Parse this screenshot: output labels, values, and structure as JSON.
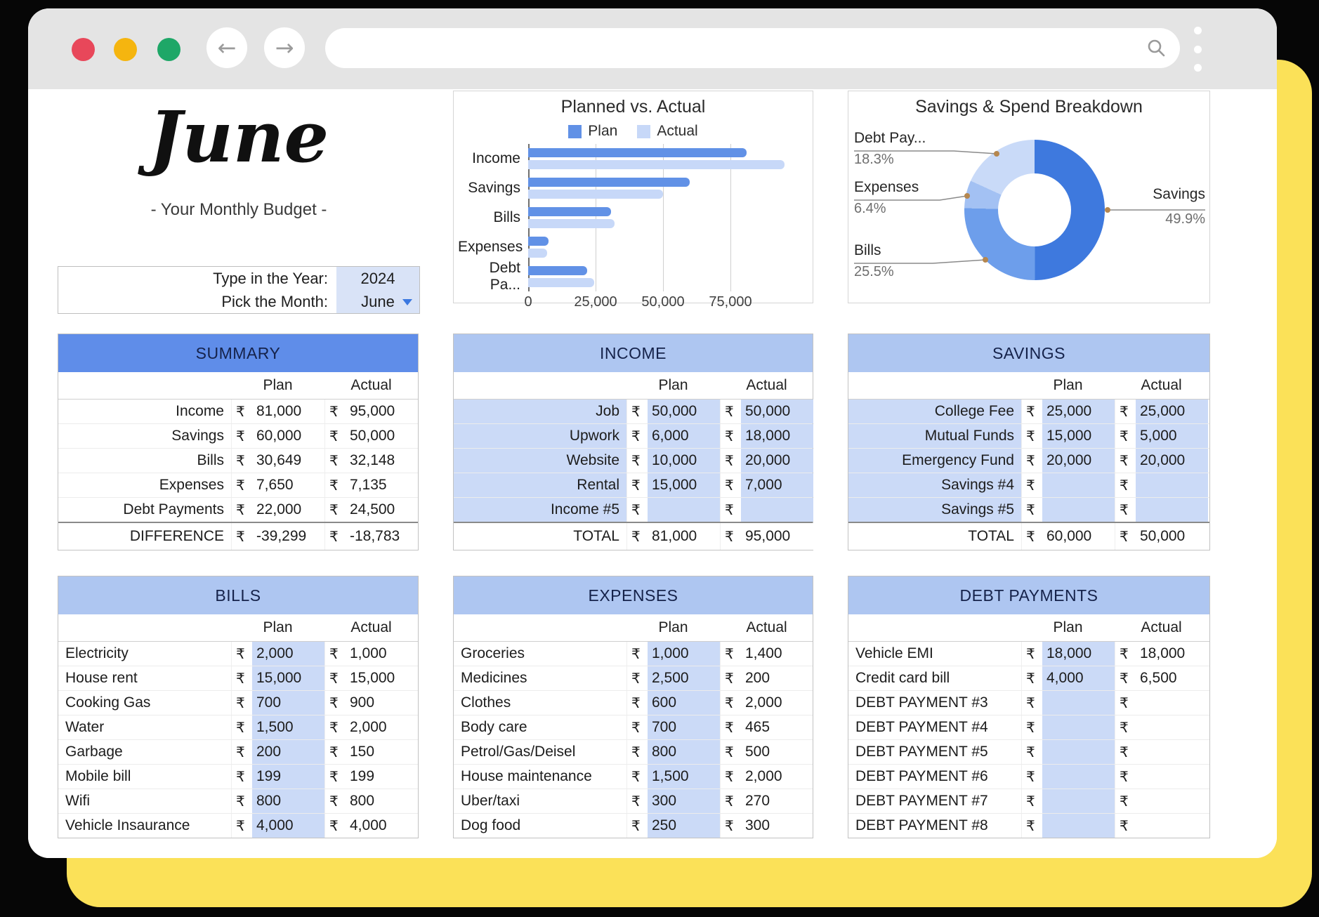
{
  "browser": {
    "back_glyph": "←",
    "forward_glyph": "→",
    "url_value": ""
  },
  "header": {
    "month_title": "June",
    "subtitle": "- Your Monthly Budget -"
  },
  "picker": {
    "year_label": "Type in the Year:",
    "year_value": "2024",
    "month_label": "Pick the Month:",
    "month_value": "June"
  },
  "currency": "₹",
  "colors": {
    "accent_dark_header": "#5f8de9",
    "accent_light_header": "#aec6f1",
    "cell_fill": "#cbdaf7",
    "yellow_card": "#fbe158",
    "traffic_red": "#e8475a",
    "traffic_amber": "#f5b50f",
    "traffic_green": "#1ea767"
  },
  "chart_data": [
    {
      "type": "bar",
      "title": "Planned vs. Actual",
      "orientation": "horizontal",
      "categories": [
        "Income",
        "Savings",
        "Bills",
        "Expenses",
        "Debt Pa..."
      ],
      "series": [
        {
          "name": "Plan",
          "color": "#6191e6",
          "values": [
            81000,
            60000,
            30649,
            7650,
            22000
          ]
        },
        {
          "name": "Actual",
          "color": "#c7d8f8",
          "values": [
            95000,
            50000,
            32148,
            7135,
            24500
          ]
        }
      ],
      "xlim": [
        0,
        100000
      ],
      "xticks": [
        0,
        25000,
        50000,
        75000
      ],
      "xtick_labels": [
        "0",
        "25,000",
        "50,000",
        "75,000"
      ],
      "legend_position": "top",
      "grid": true
    },
    {
      "type": "pie",
      "title": "Savings & Spend Breakdown",
      "donut": true,
      "slices": [
        {
          "label": "Savings",
          "percent": 49.9,
          "percent_label": "49.9%",
          "color": "#3e79de"
        },
        {
          "label": "Bills",
          "percent": 25.5,
          "percent_label": "25.5%",
          "color": "#6d9eeb"
        },
        {
          "label": "Expenses",
          "percent": 6.4,
          "percent_label": "6.4%",
          "color": "#a3c1f3"
        },
        {
          "label": "Debt Pay...",
          "percent": 18.3,
          "percent_label": "18.3%",
          "color": "#c9daf8"
        }
      ]
    }
  ],
  "tables": [
    {
      "title": "SUMMARY",
      "variant": "summary",
      "header": "dark",
      "columns": [
        "Plan",
        "Actual"
      ],
      "rows": [
        [
          "Income",
          "81,000",
          "95,000"
        ],
        [
          "Savings",
          "60,000",
          "50,000"
        ],
        [
          "Bills",
          "30,649",
          "32,148"
        ],
        [
          "Expenses",
          "7,650",
          "7,135"
        ],
        [
          "Debt Payments",
          "22,000",
          "24,500"
        ]
      ],
      "footer": [
        "DIFFERENCE",
        "-39,299",
        "-18,783"
      ]
    },
    {
      "title": "INCOME",
      "variant": "filled",
      "header": "light",
      "columns": [
        "Plan",
        "Actual"
      ],
      "rows": [
        [
          "Job",
          "50,000",
          "50,000"
        ],
        [
          "Upwork",
          "6,000",
          "18,000"
        ],
        [
          "Website",
          "10,000",
          "20,000"
        ],
        [
          "Rental",
          "15,000",
          "7,000"
        ],
        [
          "Income #5",
          "",
          ""
        ]
      ],
      "footer": [
        "TOTAL",
        "81,000",
        "95,000"
      ]
    },
    {
      "title": "SAVINGS",
      "variant": "filled",
      "header": "light",
      "columns": [
        "Plan",
        "Actual"
      ],
      "rows": [
        [
          "College Fee",
          "25,000",
          "25,000"
        ],
        [
          "Mutual Funds",
          "15,000",
          "5,000"
        ],
        [
          "Emergency Fund",
          "20,000",
          "20,000"
        ],
        [
          "Savings #4",
          "",
          ""
        ],
        [
          "Savings #5",
          "",
          ""
        ]
      ],
      "footer": [
        "TOTAL",
        "60,000",
        "50,000"
      ]
    },
    {
      "title": "BILLS",
      "variant": "plain",
      "header": "light",
      "columns": [
        "Plan",
        "Actual"
      ],
      "rows": [
        [
          "Electricity",
          "2,000",
          "1,000"
        ],
        [
          "House rent",
          "15,000",
          "15,000"
        ],
        [
          "Cooking Gas",
          "700",
          "900"
        ],
        [
          "Water",
          "1,500",
          "2,000"
        ],
        [
          "Garbage",
          "200",
          "150"
        ],
        [
          "Mobile bill",
          "199",
          "199"
        ],
        [
          "Wifi",
          "800",
          "800"
        ],
        [
          "Vehicle Insaurance",
          "4,000",
          "4,000"
        ]
      ],
      "footer": null
    },
    {
      "title": "EXPENSES",
      "variant": "plain",
      "header": "light",
      "columns": [
        "Plan",
        "Actual"
      ],
      "rows": [
        [
          "Groceries",
          "1,000",
          "1,400"
        ],
        [
          "Medicines",
          "2,500",
          "200"
        ],
        [
          "Clothes",
          "600",
          "2,000"
        ],
        [
          "Body care",
          "700",
          "465"
        ],
        [
          "Petrol/Gas/Deisel",
          "800",
          "500"
        ],
        [
          "House maintenance",
          "1,500",
          "2,000"
        ],
        [
          "Uber/taxi",
          "300",
          "270"
        ],
        [
          "Dog food",
          "250",
          "300"
        ]
      ],
      "footer": null
    },
    {
      "title": "DEBT PAYMENTS",
      "variant": "plain",
      "header": "light",
      "columns": [
        "Plan",
        "Actual"
      ],
      "rows": [
        [
          "Vehicle EMI",
          "18,000",
          "18,000"
        ],
        [
          "Credit card bill",
          "4,000",
          "6,500"
        ],
        [
          "DEBT PAYMENT #3",
          "",
          ""
        ],
        [
          "DEBT PAYMENT #4",
          "",
          ""
        ],
        [
          "DEBT PAYMENT #5",
          "",
          ""
        ],
        [
          "DEBT PAYMENT #6",
          "",
          ""
        ],
        [
          "DEBT PAYMENT #7",
          "",
          ""
        ],
        [
          "DEBT PAYMENT #8",
          "",
          ""
        ]
      ],
      "footer": null
    }
  ]
}
